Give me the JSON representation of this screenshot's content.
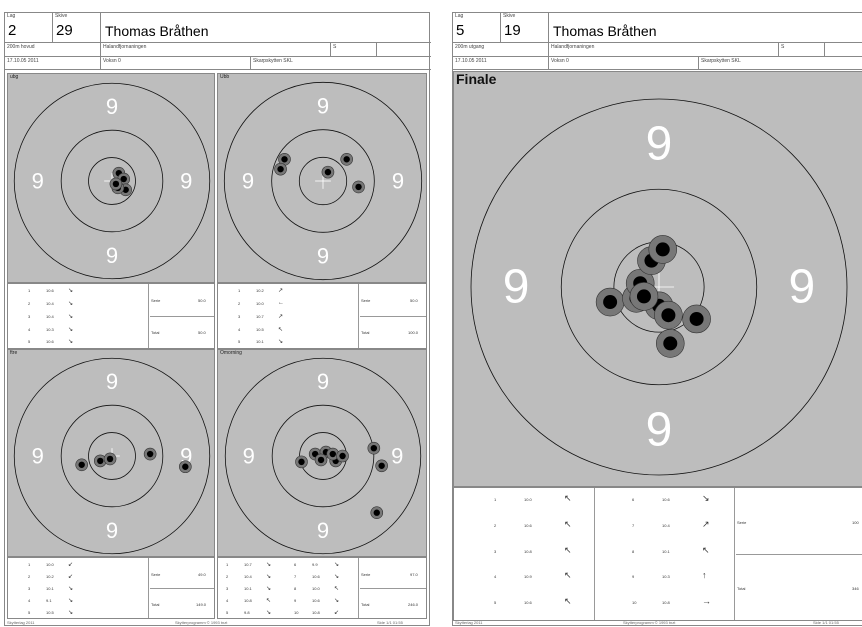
{
  "left": {
    "lag_label": "Lag",
    "lag": "2",
    "skive_label": "Skive",
    "skive": "29",
    "name": "Thomas Bråthen",
    "row2": [
      "200m hovud",
      "Halandfjornaningen",
      "S",
      ""
    ],
    "row3": [
      "17.10.05 2011",
      "Voksn 0",
      "Skarpskytten SKL"
    ],
    "panels": [
      {
        "label": "ubg",
        "rings": [
          "9",
          "9",
          "9",
          "9"
        ],
        "shots": [
          [
            0.07,
            -0.08
          ],
          [
            0.12,
            -0.02
          ],
          [
            0.14,
            0.09
          ],
          [
            0.06,
            0.07
          ],
          [
            0.04,
            0.03
          ]
        ],
        "rows": [
          [
            "1",
            "10.6",
            "↘"
          ],
          [
            "2",
            "10.4",
            "↘"
          ],
          [
            "3",
            "10.4",
            "↘"
          ],
          [
            "4",
            "10.3",
            "↘"
          ],
          [
            "5",
            "10.6",
            "↘"
          ]
        ],
        "sum": [
          [
            "Serie",
            "50.0"
          ],
          [
            "Total",
            "50.0"
          ]
        ]
      },
      {
        "label": "Ubb",
        "rings": [
          "9",
          "9",
          "9",
          "9"
        ],
        "shots": [
          [
            -0.39,
            -0.22
          ],
          [
            -0.43,
            -0.12
          ],
          [
            0.05,
            -0.09
          ],
          [
            0.24,
            -0.22
          ],
          [
            0.36,
            0.06
          ]
        ],
        "rows": [
          [
            "1",
            "10.2",
            "↗"
          ],
          [
            "2",
            "10.0",
            "←"
          ],
          [
            "3",
            "10.7",
            "↗"
          ],
          [
            "4",
            "10.5",
            "↖"
          ],
          [
            "5",
            "10.1",
            "↘"
          ]
        ],
        "sum": [
          [
            "Serie",
            "50.0"
          ],
          [
            "Total",
            "100.0"
          ]
        ]
      },
      {
        "label": "ftre",
        "rings": [
          "9",
          "9",
          "9",
          "9"
        ],
        "shots": [
          [
            -0.31,
            0.09
          ],
          [
            -0.12,
            0.05
          ],
          [
            -0.02,
            0.03
          ],
          [
            0.39,
            -0.02
          ],
          [
            0.75,
            0.11
          ]
        ],
        "rows": [
          [
            "1",
            "10.0",
            "↙"
          ],
          [
            "2",
            "10.2",
            "↙"
          ],
          [
            "3",
            "10.1",
            "↘"
          ],
          [
            "4",
            "9.1",
            "↘"
          ],
          [
            "5",
            "10.5",
            "↘"
          ]
        ],
        "sum": [
          [
            "Serie",
            "49.0"
          ],
          [
            "Total",
            "149.0"
          ]
        ]
      },
      {
        "label": "Omorning",
        "rings": [
          "9",
          "9",
          "9",
          "9"
        ],
        "shots": [
          [
            -0.22,
            0.06
          ],
          [
            -0.08,
            -0.02
          ],
          [
            0.03,
            -0.04
          ],
          [
            0.13,
            0.05
          ],
          [
            0.52,
            -0.08
          ],
          [
            0.6,
            0.1
          ],
          [
            0.55,
            0.58
          ],
          [
            -0.02,
            0.04
          ],
          [
            0.1,
            -0.02
          ],
          [
            0.2,
            0.0
          ]
        ],
        "rows": [
          [
            "1",
            "10.7",
            "↘"
          ],
          [
            "2",
            "10.4",
            "↘"
          ],
          [
            "3",
            "10.1",
            "↘"
          ],
          [
            "4",
            "10.8",
            "↖"
          ],
          [
            "5",
            "9.8",
            "↘"
          ]
        ],
        "rows2": [
          [
            "6",
            "9.9",
            "↘"
          ],
          [
            "7",
            "10.6",
            "↘"
          ],
          [
            "8",
            "10.0",
            "↖"
          ],
          [
            "9",
            "10.6",
            "↘"
          ],
          [
            "10",
            "10.8",
            "↙"
          ]
        ],
        "sum": [
          [
            "Serie",
            "97.0"
          ],
          [
            "Total",
            "246.0"
          ]
        ]
      }
    ],
    "footer": [
      "Skytterlag 2011",
      "Skytterprogramm © 1993 tnzt",
      "Side 1/1 01:55"
    ]
  },
  "right": {
    "lag_label": "Lag",
    "lag": "5",
    "skive_label": "Skive",
    "skive": "19",
    "name": "Thomas Bråthen",
    "row2": [
      "200m utgang",
      "Halandfjornaningen",
      "S",
      ""
    ],
    "row3": [
      "17.10.05 2011",
      "Voksn 0",
      "Skarpskytten SKL"
    ],
    "finale_label": "Finale",
    "rings": [
      "9",
      "9",
      "9",
      "9"
    ],
    "shots": [
      [
        -0.26,
        0.08
      ],
      [
        -0.12,
        0.06
      ],
      [
        -0.1,
        -0.02
      ],
      [
        -0.04,
        -0.14
      ],
      [
        0.02,
        -0.2
      ],
      [
        0.0,
        0.1
      ],
      [
        0.05,
        0.15
      ],
      [
        0.2,
        0.17
      ],
      [
        0.06,
        0.3
      ],
      [
        -0.08,
        0.05
      ]
    ],
    "rows_a": [
      [
        "1",
        "10.0",
        "↖"
      ],
      [
        "2",
        "10.6",
        "↖"
      ],
      [
        "3",
        "10.8",
        "↖"
      ],
      [
        "4",
        "10.9",
        "↖"
      ],
      [
        "5",
        "10.6",
        "↖"
      ]
    ],
    "rows_b": [
      [
        "6",
        "10.6",
        "↘"
      ],
      [
        "7",
        "10.4",
        "↗"
      ],
      [
        "8",
        "10.1",
        "↖"
      ],
      [
        "9",
        "10.3",
        "↑"
      ],
      [
        "10",
        "10.8",
        "→"
      ]
    ],
    "sum": [
      [
        "Serie",
        "100"
      ],
      [
        "Total",
        "346"
      ]
    ],
    "footer": [
      "Skytterlag 2011",
      "Skytterprogramm © 1993 tnzt",
      "Side 1/1 01:55"
    ]
  },
  "colors": {
    "target_gray": "#bdbdbd",
    "ring_line": "#111111",
    "ring_number": "#ffffff",
    "hit_outer": "#777777",
    "hit_inner": "#000000"
  }
}
